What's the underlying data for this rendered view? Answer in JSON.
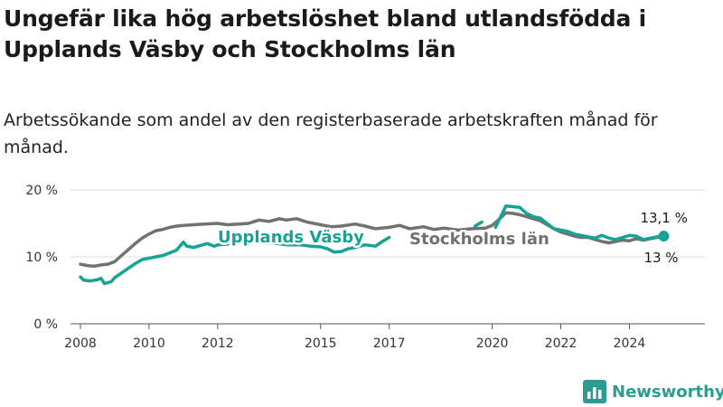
{
  "title": "Ungefär lika hög arbetslöshet bland utlandsfödda i Upplands Väsby och Stockholms län",
  "subtitle": "Arbetssökande som andel av den registerbaserade arbetskraften månad för månad.",
  "logo": {
    "text": "Newsworthy",
    "icon": "bar-chart-logo-icon"
  },
  "colors": {
    "upplands": "#16a394",
    "stockholm": "#717171",
    "grid": "#dddddd",
    "axis": "#555555"
  },
  "chart_data": {
    "type": "line",
    "x_ticks": [
      "2008",
      "2010",
      "2012",
      "2015",
      "2017",
      "2020",
      "2022",
      "2024"
    ],
    "y_ticks": [
      "0 %",
      "10 %",
      "20 %"
    ],
    "ylim": [
      0,
      20
    ],
    "xlim": [
      2007.5,
      2026.2
    ],
    "grid": true,
    "series": [
      {
        "name": "Upplands Väsby",
        "color": "#16a394",
        "end_label": "13,1 %",
        "points": [
          [
            2008.0,
            7.0
          ],
          [
            2008.1,
            6.5
          ],
          [
            2008.3,
            6.4
          ],
          [
            2008.5,
            6.6
          ],
          [
            2008.6,
            6.8
          ],
          [
            2008.7,
            6.0
          ],
          [
            2008.9,
            6.3
          ],
          [
            2009.0,
            6.9
          ],
          [
            2009.2,
            7.6
          ],
          [
            2009.4,
            8.3
          ],
          [
            2009.6,
            9.0
          ],
          [
            2009.8,
            9.6
          ],
          [
            2010.0,
            9.8
          ],
          [
            2010.2,
            10.0
          ],
          [
            2010.4,
            10.2
          ],
          [
            2010.6,
            10.6
          ],
          [
            2010.8,
            11.0
          ],
          [
            2011.0,
            12.2
          ],
          [
            2011.1,
            11.6
          ],
          [
            2011.3,
            11.4
          ],
          [
            2011.5,
            11.7
          ],
          [
            2011.7,
            12.0
          ],
          [
            2011.9,
            11.6
          ],
          [
            2012.0,
            11.8
          ],
          [
            2012.3,
            11.9
          ],
          null,
          [
            2013.0,
            12.5
          ],
          [
            2013.3,
            12.2
          ],
          [
            2013.7,
            12.0
          ],
          [
            2014.0,
            11.8
          ],
          [
            2014.4,
            11.8
          ],
          [
            2014.7,
            11.6
          ],
          [
            2015.0,
            11.5
          ],
          [
            2015.2,
            11.2
          ],
          [
            2015.4,
            10.7
          ],
          [
            2015.6,
            10.8
          ],
          [
            2015.8,
            11.2
          ],
          [
            2016.0,
            11.4
          ],
          [
            2016.3,
            11.8
          ],
          [
            2016.6,
            11.6
          ],
          [
            2016.8,
            12.3
          ],
          [
            2017.0,
            12.9
          ],
          null,
          [
            2019.5,
            14.6
          ],
          [
            2019.7,
            15.2
          ],
          null,
          [
            2020.1,
            14.4
          ],
          [
            2020.2,
            15.5
          ],
          [
            2020.4,
            17.6
          ],
          [
            2020.6,
            17.5
          ],
          [
            2020.8,
            17.4
          ],
          [
            2021.0,
            16.5
          ],
          [
            2021.2,
            16.0
          ],
          [
            2021.4,
            15.8
          ],
          [
            2021.6,
            15.0
          ],
          [
            2021.8,
            14.2
          ],
          [
            2022.0,
            14.0
          ],
          [
            2022.2,
            13.8
          ],
          [
            2022.4,
            13.4
          ],
          [
            2022.6,
            13.2
          ],
          [
            2022.8,
            13.0
          ],
          [
            2023.0,
            12.8
          ],
          [
            2023.2,
            13.2
          ],
          [
            2023.4,
            12.8
          ],
          [
            2023.6,
            12.6
          ],
          [
            2023.8,
            12.9
          ],
          [
            2024.0,
            13.2
          ],
          [
            2024.2,
            13.1
          ],
          [
            2024.4,
            12.6
          ],
          [
            2024.6,
            12.8
          ],
          [
            2024.8,
            13.0
          ],
          [
            2025.0,
            13.1
          ]
        ]
      },
      {
        "name": "Stockholms län",
        "color": "#717171",
        "end_label": "13 %",
        "points": [
          [
            2008.0,
            8.9
          ],
          [
            2008.2,
            8.7
          ],
          [
            2008.4,
            8.6
          ],
          [
            2008.6,
            8.8
          ],
          [
            2008.8,
            8.9
          ],
          [
            2009.0,
            9.3
          ],
          [
            2009.2,
            10.2
          ],
          [
            2009.4,
            11.1
          ],
          [
            2009.6,
            12.0
          ],
          [
            2009.8,
            12.8
          ],
          [
            2010.0,
            13.4
          ],
          [
            2010.2,
            13.9
          ],
          [
            2010.4,
            14.1
          ],
          [
            2010.6,
            14.4
          ],
          [
            2010.8,
            14.6
          ],
          [
            2011.0,
            14.7
          ],
          [
            2011.3,
            14.8
          ],
          [
            2011.6,
            14.9
          ],
          [
            2012.0,
            15.0
          ],
          [
            2012.3,
            14.8
          ],
          [
            2012.6,
            14.9
          ],
          [
            2012.9,
            15.0
          ],
          [
            2013.2,
            15.5
          ],
          [
            2013.5,
            15.3
          ],
          [
            2013.8,
            15.7
          ],
          [
            2014.0,
            15.5
          ],
          [
            2014.3,
            15.7
          ],
          [
            2014.6,
            15.2
          ],
          [
            2015.0,
            14.8
          ],
          [
            2015.3,
            14.5
          ],
          [
            2015.6,
            14.6
          ],
          [
            2016.0,
            14.9
          ],
          [
            2016.3,
            14.6
          ],
          [
            2016.6,
            14.2
          ],
          [
            2017.0,
            14.4
          ],
          [
            2017.3,
            14.7
          ],
          [
            2017.6,
            14.2
          ],
          [
            2018.0,
            14.5
          ],
          [
            2018.3,
            14.1
          ],
          [
            2018.6,
            14.3
          ],
          [
            2019.0,
            14.0
          ],
          [
            2019.4,
            14.2
          ],
          [
            2019.8,
            14.3
          ],
          [
            2020.0,
            14.7
          ],
          [
            2020.2,
            15.6
          ],
          [
            2020.4,
            16.6
          ],
          [
            2020.6,
            16.5
          ],
          [
            2020.8,
            16.3
          ],
          [
            2021.0,
            16.0
          ],
          [
            2021.2,
            15.7
          ],
          [
            2021.4,
            15.4
          ],
          [
            2021.6,
            14.8
          ],
          [
            2021.8,
            14.2
          ],
          [
            2022.0,
            13.7
          ],
          [
            2022.2,
            13.4
          ],
          [
            2022.4,
            13.1
          ],
          [
            2022.6,
            12.9
          ],
          [
            2022.8,
            12.9
          ],
          [
            2023.0,
            12.6
          ],
          [
            2023.2,
            12.3
          ],
          [
            2023.4,
            12.1
          ],
          [
            2023.6,
            12.3
          ],
          [
            2023.8,
            12.5
          ],
          [
            2024.0,
            12.4
          ],
          [
            2024.2,
            12.7
          ],
          [
            2024.4,
            12.5
          ],
          [
            2024.6,
            12.7
          ],
          [
            2024.8,
            12.9
          ],
          [
            2025.0,
            13.0
          ]
        ]
      }
    ]
  }
}
